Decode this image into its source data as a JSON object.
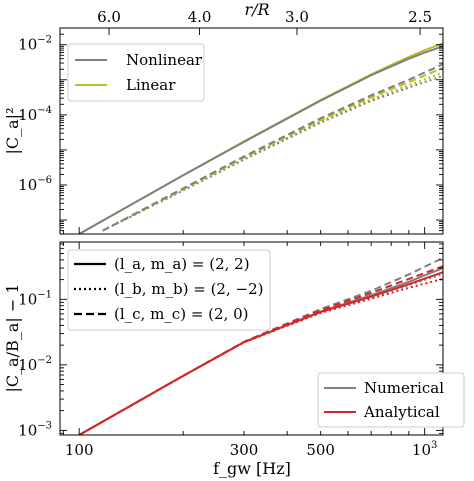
{
  "chart_data": [
    {
      "type": "line",
      "panel": "top",
      "xlabel": "",
      "ylabel": "|C_a|²",
      "x_scale": "log",
      "y_scale": "log",
      "xlim": [
        88,
        1130
      ],
      "ylim": [
        4e-08,
        0.03
      ],
      "top_axis": {
        "label": "r/R",
        "ticks": [
          {
            "value": 6.0,
            "label": "6.0",
            "fgw": 122
          },
          {
            "value": 4.0,
            "label": "4.0",
            "fgw": 223
          },
          {
            "value": 3.0,
            "label": "3.0",
            "fgw": 427
          },
          {
            "value": 2.5,
            "label": "2.5",
            "fgw": 970
          }
        ]
      },
      "y_ticks": [
        {
          "value": 1e-06,
          "base": "10",
          "exp": "−6"
        },
        {
          "value": 0.0001,
          "base": "10",
          "exp": "−4"
        },
        {
          "value": 0.01,
          "base": "10",
          "exp": "−2"
        }
      ],
      "grid": false,
      "legend": {
        "position": "top-left",
        "entries": [
          {
            "label": "Nonlinear",
            "color": "#7f7f7f"
          },
          {
            "label": "Linear",
            "color": "#bcbd22"
          }
        ]
      },
      "series": [
        {
          "name": "Linear",
          "mode": "(2,2)",
          "color": "#bcbd22",
          "style": "solid",
          "x": [
            100,
            200,
            300,
            500,
            700,
            900,
            1000,
            1130
          ],
          "y": [
            4e-08,
            1.9e-06,
            1.75e-05,
            0.000265,
            0.00143,
            0.0045,
            0.007,
            0.011
          ]
        },
        {
          "name": "Nonlinear",
          "mode": "(2,2)",
          "color": "#7f7f7f",
          "style": "solid",
          "x": [
            100,
            200,
            300,
            500,
            700,
            900,
            1000,
            1130
          ],
          "y": [
            4e-08,
            1.9e-06,
            1.7e-05,
            0.000255,
            0.00135,
            0.004,
            0.006,
            0.009
          ]
        },
        {
          "name": "Linear",
          "mode": "(2,-2)",
          "color": "#bcbd22",
          "style": "dotted",
          "x": [
            117,
            200,
            300,
            500,
            700,
            900,
            1130
          ],
          "y": [
            5e-08,
            7e-07,
            5.5e-06,
            6.5e-05,
            0.00028,
            0.0007,
            0.0016
          ]
        },
        {
          "name": "Nonlinear",
          "mode": "(2,-2)",
          "color": "#7f7f7f",
          "style": "dotted",
          "x": [
            117,
            200,
            300,
            500,
            700,
            900,
            1130
          ],
          "y": [
            5e-08,
            7e-07,
            5.3e-06,
            6e-05,
            0.00025,
            0.0006,
            0.0013
          ]
        },
        {
          "name": "Linear",
          "mode": "(2,0)",
          "color": "#bcbd22",
          "style": "dashed",
          "x": [
            117,
            200,
            300,
            500,
            700,
            900,
            1130
          ],
          "y": [
            5e-08,
            7.5e-07,
            6e-06,
            7e-05,
            0.00032,
            0.00085,
            0.0022
          ]
        },
        {
          "name": "Nonlinear",
          "mode": "(2,0)",
          "color": "#7f7f7f",
          "style": "dashed",
          "x": [
            117,
            200,
            300,
            500,
            700,
            900,
            1130
          ],
          "y": [
            5e-08,
            8e-07,
            6.5e-06,
            8e-05,
            0.00036,
            0.001,
            0.0028
          ]
        }
      ]
    },
    {
      "type": "line",
      "panel": "bottom",
      "xlabel": "f_gw [Hz]",
      "ylabel": "|C_a/B_a| − 1",
      "x_scale": "log",
      "y_scale": "log",
      "xlim": [
        88,
        1130
      ],
      "ylim": [
        0.00085,
        0.75
      ],
      "x_ticks": [
        {
          "value": 100,
          "label": "100"
        },
        {
          "value": 300,
          "label": "300"
        },
        {
          "value": 500,
          "label": "500"
        },
        {
          "value": 1000,
          "base": "10",
          "exp": "3"
        }
      ],
      "y_ticks": [
        {
          "value": 0.001,
          "base": "10",
          "exp": "−3"
        },
        {
          "value": 0.01,
          "base": "10",
          "exp": "−2"
        },
        {
          "value": 0.1,
          "base": "10",
          "exp": "−1"
        }
      ],
      "grid": false,
      "legends": [
        {
          "position": "top-left",
          "entries": [
            {
              "label": "(l_a, m_a) = (2, 2)",
              "style": "solid"
            },
            {
              "label": "(l_b, m_b) = (2, −2)",
              "style": "dotted"
            },
            {
              "label": "(l_c, m_c) = (2, 0)",
              "style": "dashed"
            }
          ]
        },
        {
          "position": "bottom-right",
          "entries": [
            {
              "label": "Numerical",
              "color": "#7f7f7f"
            },
            {
              "label": "Analytical",
              "color": "#d62728"
            }
          ]
        }
      ],
      "series": [
        {
          "name": "Numerical",
          "mode": "(2,0)",
          "color": "#7f7f7f",
          "style": "dashed",
          "x": [
            100,
            200,
            300,
            500,
            700,
            900,
            1130
          ],
          "y": [
            0.00085,
            0.0068,
            0.0225,
            0.071,
            0.135,
            0.24,
            0.43
          ]
        },
        {
          "name": "Numerical",
          "mode": "(2,-2)",
          "color": "#7f7f7f",
          "style": "dotted",
          "x": [
            100,
            200,
            300,
            500,
            700,
            900,
            1130
          ],
          "y": [
            0.00085,
            0.0068,
            0.0222,
            0.064,
            0.108,
            0.165,
            0.245
          ]
        },
        {
          "name": "Numerical",
          "mode": "(2,2)",
          "color": "#7f7f7f",
          "style": "solid",
          "x": [
            100,
            200,
            300,
            500,
            700,
            900,
            1130
          ],
          "y": [
            0.00085,
            0.0068,
            0.0222,
            0.065,
            0.115,
            0.185,
            0.3
          ]
        },
        {
          "name": "Analytical",
          "mode": "(2,0)",
          "color": "#d62728",
          "style": "dashed",
          "x": [
            100,
            200,
            300,
            500,
            700,
            900,
            1130
          ],
          "y": [
            0.00085,
            0.0068,
            0.0224,
            0.068,
            0.125,
            0.205,
            0.32
          ]
        },
        {
          "name": "Analytical",
          "mode": "(2,-2)",
          "color": "#d62728",
          "style": "dotted",
          "x": [
            100,
            200,
            300,
            500,
            700,
            900,
            1130
          ],
          "y": [
            0.00085,
            0.0068,
            0.0221,
            0.062,
            0.102,
            0.15,
            0.205
          ]
        },
        {
          "name": "Analytical",
          "mode": "(2,2)",
          "color": "#d62728",
          "style": "solid",
          "x": [
            100,
            200,
            300,
            500,
            700,
            900,
            1130
          ],
          "y": [
            0.00085,
            0.0068,
            0.0222,
            0.064,
            0.11,
            0.17,
            0.26
          ]
        }
      ]
    }
  ]
}
